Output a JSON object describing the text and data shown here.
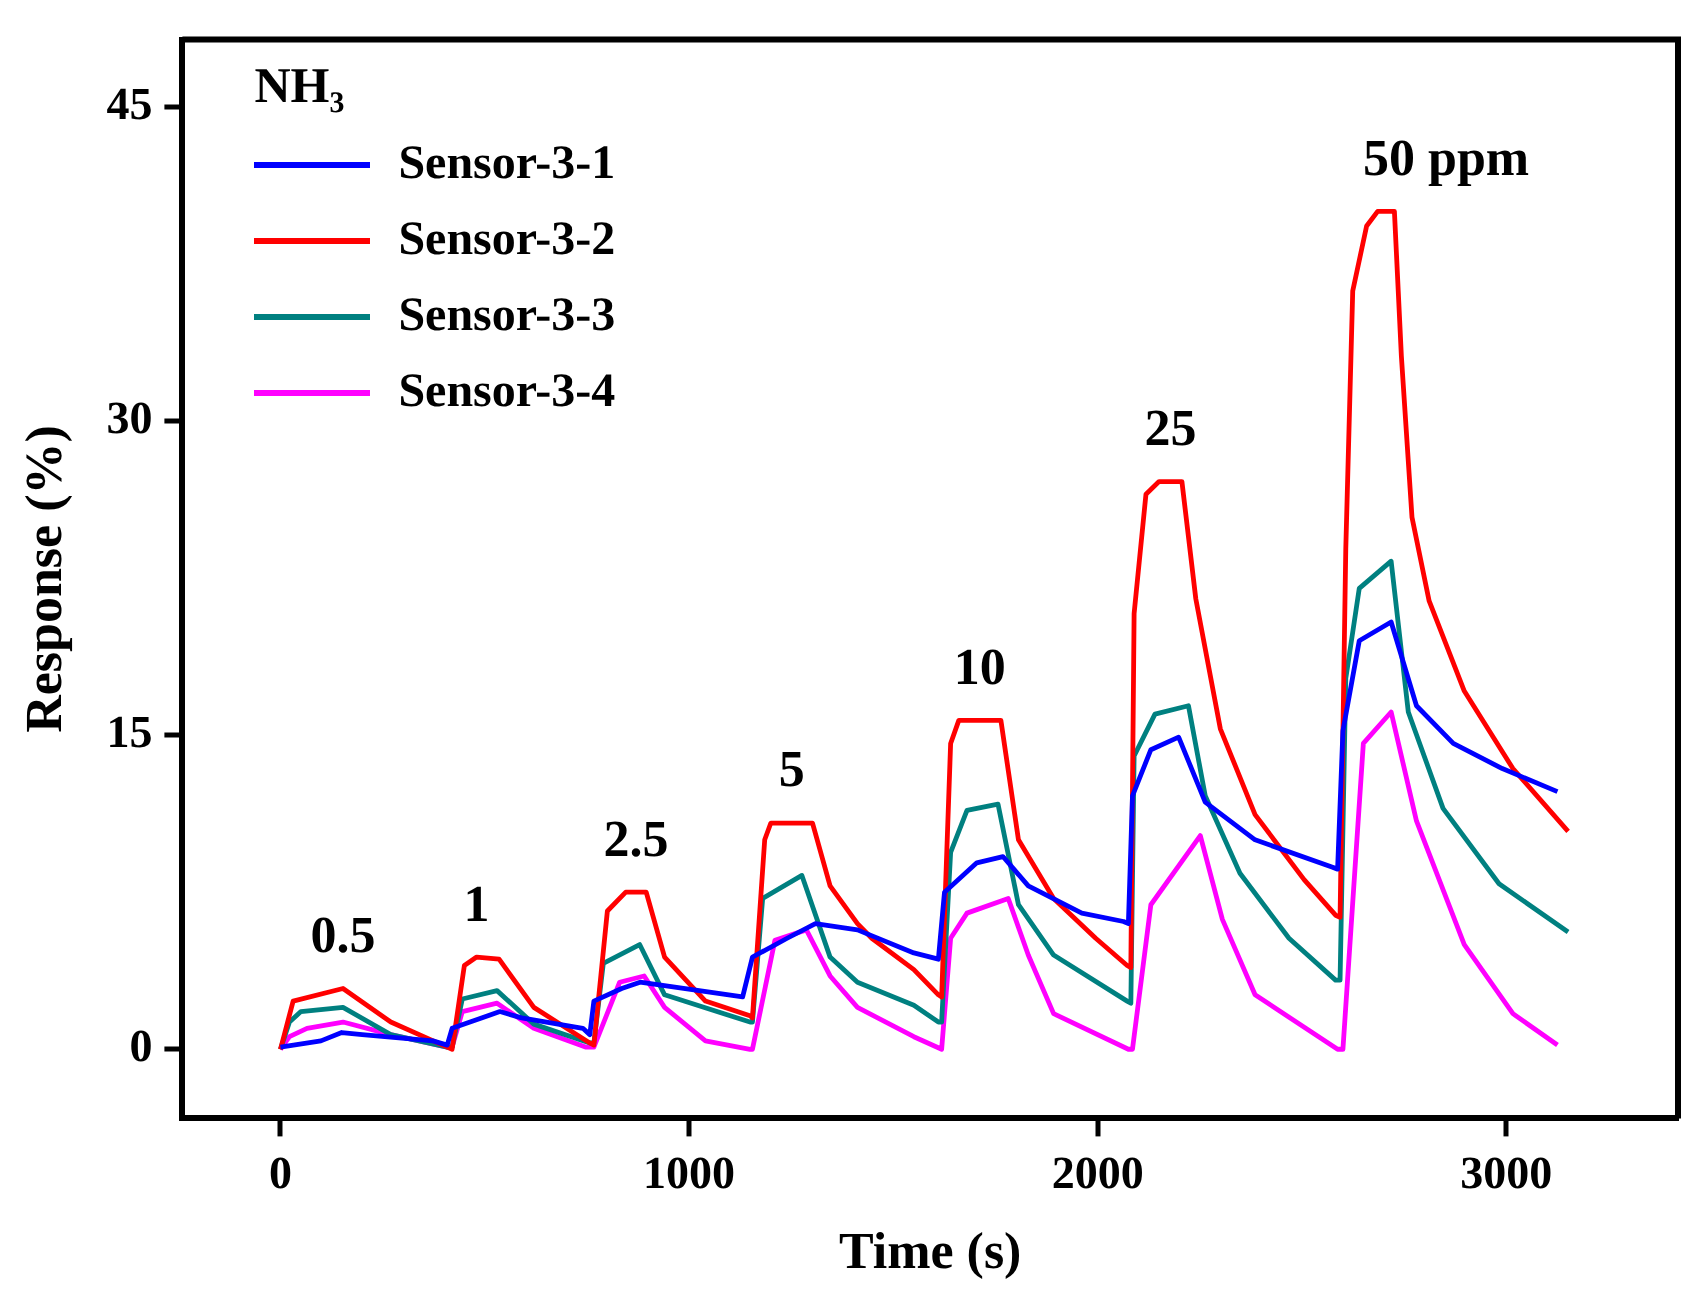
{
  "chart_data": {
    "type": "line",
    "xlabel": "Time (s)",
    "ylabel": "Response (%)",
    "legend_title": "NH₃",
    "legend": "top left",
    "grid": false,
    "marker": "none",
    "line_style": "solid",
    "xlim": [
      -240,
      3420
    ],
    "xticks": [
      0,
      1000,
      2000,
      3000
    ],
    "ylim": [
      -3.3,
      48.2
    ],
    "yticks": [
      0,
      15,
      30,
      45
    ],
    "annotations": [
      "0.5",
      "1",
      "2.5",
      "5",
      "10",
      "25",
      "50 ppm"
    ],
    "series": [
      {
        "name": "Sensor-3-1",
        "color": "#0000ff",
        "x": [
          0,
          99,
          150,
          200,
          373,
          408,
          420,
          537,
          590,
          740,
          757,
          767,
          835,
          880,
          1131,
          1155,
          1240,
          1309,
          1412,
          1550,
          1610,
          1625,
          1704,
          1768,
          1830,
          1961,
          2063,
          2075,
          2085,
          2130,
          2198,
          2263,
          2385,
          2573,
          2587,
          2600,
          2640,
          2718,
          2780,
          2870,
          2990,
          3125
        ],
        "values": [
          0.1,
          0.4,
          0.8,
          0.7,
          0.4,
          0.2,
          1.0,
          1.8,
          1.5,
          1.0,
          0.7,
          2.3,
          2.9,
          3.2,
          2.5,
          4.4,
          5.3,
          6.0,
          5.7,
          4.6,
          4.3,
          7.5,
          8.9,
          9.2,
          7.8,
          6.5,
          6.1,
          6.0,
          12.1,
          14.3,
          14.9,
          11.8,
          10.0,
          8.7,
          8.6,
          15.2,
          19.5,
          20.4,
          16.4,
          14.6,
          13.4,
          12.3
        ]
      },
      {
        "name": "Sensor-3-2",
        "color": "#ff0000",
        "x": [
          0,
          31,
          153,
          270,
          408,
          420,
          450,
          480,
          535,
          620,
          757,
          767,
          800,
          845,
          895,
          940,
          1040,
          1149,
          1155,
          1185,
          1200,
          1302,
          1345,
          1412,
          1447,
          1550,
          1610,
          1618,
          1640,
          1660,
          1763,
          1806,
          1892,
          1995,
          2072,
          2081,
          2089,
          2118,
          2150,
          2206,
          2240,
          2300,
          2385,
          2505,
          2582,
          2593,
          2607,
          2624,
          2658,
          2685,
          2726,
          2743,
          2769,
          2811,
          2897,
          3016,
          3151
        ],
        "values": [
          0,
          2.3,
          2.9,
          1.3,
          0.1,
          0,
          4.0,
          4.4,
          4.3,
          2.0,
          0.3,
          0.2,
          6.6,
          7.5,
          7.5,
          4.4,
          2.3,
          1.6,
          1.5,
          10.0,
          10.8,
          10.8,
          7.8,
          6.0,
          5.3,
          3.8,
          2.6,
          2.5,
          14.6,
          15.7,
          15.7,
          10.0,
          7.2,
          5.3,
          4.0,
          3.9,
          20.8,
          26.5,
          27.1,
          27.1,
          21.5,
          15.3,
          11.2,
          8.1,
          6.4,
          6.3,
          23.9,
          36.2,
          39.3,
          40.0,
          40.0,
          33.1,
          25.4,
          21.4,
          17.1,
          13.4,
          10.4
        ]
      },
      {
        "name": "Sensor-3-3",
        "color": "#008080",
        "x": [
          0,
          22,
          50,
          153,
          270,
          408,
          420,
          445,
          530,
          620,
          757,
          767,
          790,
          879,
          940,
          1149,
          1155,
          1180,
          1276,
          1345,
          1412,
          1550,
          1610,
          1618,
          1640,
          1680,
          1756,
          1806,
          1892,
          2072,
          2081,
          2089,
          2140,
          2222,
          2263,
          2348,
          2468,
          2582,
          2593,
          2607,
          2640,
          2718,
          2760,
          2845,
          2982,
          3151
        ],
        "values": [
          0,
          1.3,
          1.8,
          2.0,
          0.7,
          0.1,
          0.1,
          2.4,
          2.8,
          1.2,
          0.3,
          0.3,
          4.1,
          5.0,
          2.6,
          1.3,
          1.3,
          7.2,
          8.3,
          4.4,
          3.2,
          2.1,
          1.3,
          1.3,
          9.4,
          11.4,
          11.7,
          6.9,
          4.5,
          2.3,
          2.2,
          14.0,
          16.0,
          16.4,
          12.1,
          8.4,
          5.3,
          3.3,
          3.3,
          17.7,
          22.0,
          23.3,
          16.1,
          11.5,
          7.9,
          5.6
        ]
      },
      {
        "name": "Sensor-3-4",
        "color": "#ff00ff",
        "x": [
          0,
          22,
          65,
          153,
          270,
          408,
          420,
          445,
          530,
          620,
          748,
          767,
          830,
          890,
          940,
          1040,
          1149,
          1155,
          1210,
          1287,
          1345,
          1412,
          1550,
          1618,
          1640,
          1680,
          1781,
          1830,
          1892,
          2075,
          2085,
          2130,
          2251,
          2305,
          2385,
          2587,
          2600,
          2650,
          2718,
          2780,
          2897,
          3016,
          3125
        ],
        "values": [
          0,
          0.6,
          1.0,
          1.3,
          0.7,
          0.1,
          0.1,
          1.8,
          2.2,
          1.0,
          0.1,
          0.1,
          3.2,
          3.5,
          2.0,
          0.4,
          0,
          0,
          5.2,
          5.7,
          3.5,
          2.0,
          0.6,
          0,
          5.3,
          6.5,
          7.2,
          4.5,
          1.7,
          0,
          0,
          6.9,
          10.2,
          6.2,
          2.6,
          0,
          0,
          14.6,
          16.1,
          10.9,
          5.0,
          1.7,
          0.2
        ]
      }
    ]
  }
}
